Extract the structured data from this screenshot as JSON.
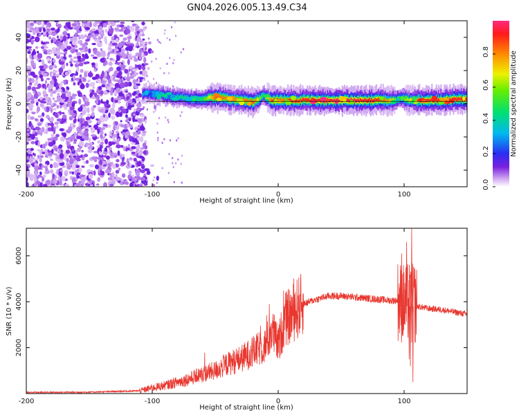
{
  "title": "GN04.2026.005.13.49.C34",
  "colors": {
    "trace": "#e8372f",
    "zero_line": "#000000"
  },
  "chart_data": [
    {
      "type": "heatmap",
      "xlabel": "Height of straight line (km)",
      "ylabel": "Frequency (Hz)",
      "xlim": [
        -200,
        150
      ],
      "ylim": [
        -50,
        50
      ],
      "x_ticks": [
        -200,
        -100,
        0,
        100
      ],
      "x_tick_labels": [
        "-200",
        "-100",
        "0",
        "100"
      ],
      "y_ticks": [
        -40,
        -20,
        0,
        20,
        40
      ],
      "y_tick_labels": [
        "-40",
        "-20",
        "0",
        "20",
        "40"
      ],
      "noise_region_x": [
        -200,
        -105
      ],
      "ridge": {
        "x": [
          -108,
          -100,
          -90,
          -80,
          -70,
          -60,
          -50,
          -40,
          -30,
          -20,
          -12,
          -5,
          0,
          10,
          20,
          40,
          60,
          80,
          90,
          95,
          100,
          105,
          110,
          130,
          150
        ],
        "freq": [
          6,
          6,
          5,
          4,
          3,
          3,
          4,
          3,
          2,
          1,
          5,
          2,
          2,
          2,
          2,
          2,
          2,
          2,
          2,
          3,
          3,
          2,
          2,
          2,
          3
        ],
        "amplitude": [
          0.3,
          0.35,
          0.4,
          0.4,
          0.45,
          0.5,
          0.85,
          0.8,
          0.8,
          0.85,
          0.45,
          0.9,
          0.85,
          0.85,
          0.9,
          0.95,
          0.95,
          0.9,
          0.7,
          0.5,
          0.6,
          0.7,
          0.9,
          0.9,
          0.9
        ]
      },
      "colorbar": {
        "label": "Normalized spectral amplitude",
        "range": [
          0.0,
          1.0
        ],
        "ticks": [
          0.0,
          0.2,
          0.4,
          0.6,
          0.8
        ],
        "tick_labels": [
          "0.0",
          "0.2",
          "0.4",
          "0.6",
          "0.8"
        ]
      }
    },
    {
      "type": "line",
      "xlabel": "Height of straight line (km)",
      "ylabel": "SNR (10 * v/v)",
      "xlim": [
        -200,
        150
      ],
      "ylim": [
        0,
        7200
      ],
      "x_ticks": [
        -200,
        -100,
        0,
        100
      ],
      "x_tick_labels": [
        "-200",
        "-100",
        "0",
        "100"
      ],
      "y_ticks": [
        2000,
        4000,
        6000
      ],
      "y_tick_labels": [
        "2000",
        "4000",
        "6000"
      ],
      "series": [
        {
          "name": "SNR",
          "x": [
            -200,
            -150,
            -110,
            -100,
            -90,
            -80,
            -70,
            -60,
            -50,
            -40,
            -30,
            -20,
            -10,
            -5,
            0,
            5,
            10,
            15,
            20,
            25,
            30,
            40,
            50,
            60,
            70,
            80,
            90,
            95,
            100,
            103,
            106,
            108,
            110,
            120,
            130,
            140,
            150
          ],
          "y": [
            50,
            60,
            120,
            250,
            350,
            500,
            650,
            850,
            1000,
            1300,
            1500,
            1800,
            2100,
            2800,
            2100,
            3200,
            3400,
            3700,
            3900,
            4000,
            4100,
            4250,
            4250,
            4200,
            4150,
            4100,
            4050,
            4050,
            3900,
            4000,
            3800,
            4000,
            3800,
            3700,
            3650,
            3550,
            3450
          ],
          "spikes": [
            {
              "x": 98,
              "y": 6100
            },
            {
              "x": 102,
              "y": 6600
            },
            {
              "x": 104,
              "y": 1500
            },
            {
              "x": 106,
              "y": 7200
            },
            {
              "x": 107,
              "y": 500
            },
            {
              "x": 105,
              "y": 1200
            }
          ]
        }
      ]
    }
  ]
}
